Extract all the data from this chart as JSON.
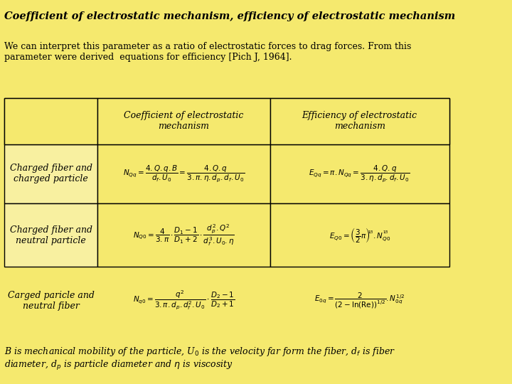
{
  "title": "Coefficient of electrostatic mechanism, efficiency of electrostatic mechanism",
  "subtitle": "We can interpret this parameter as a ratio of electrostatic forces to drag forces. From this\nparameter were derived  equations for efficiency [Pich J, 1964].",
  "col_headers": [
    "Coefficient of electrostatic\nmechanism",
    "Efficiency of electrostatic\nmechanism"
  ],
  "row_headers": [
    "Charged fiber and\ncharged particle",
    "Charged fiber and\nneutral particle",
    "Carged paricle and\nneutral fiber"
  ],
  "formula_coeff_1": "$N_{Qq} = \\dfrac{4.Q.q.B}{d_f.U_0} = \\dfrac{4.Q.q}{3.\\pi.\\eta.d_p.d_f.U_0}$",
  "formula_eff_1": "$E_{Qq} = \\pi.N_{Qq} = \\dfrac{4.Q.q}{3.\\eta.d_p.d_f.U_0}$",
  "formula_coeff_2": "$N_{Q0} = \\dfrac{4}{3.\\pi} \\cdot \\dfrac{D_1-1}{D_1+2} \\cdot \\dfrac{d_p^2.Q^2}{d_f^3.U_0.\\eta}$",
  "formula_eff_2": "$E_{Q0} = \\left(\\dfrac{3}{2}\\pi\\right)^{1/3}.N_{Q0}^{1/3}$",
  "formula_coeff_3": "$N_{q0} = \\dfrac{q^2}{3.\\pi.d_p.d_f^2.U_0} \\cdot \\dfrac{D_2-1}{D_2+1}$",
  "formula_eff_3": "$E_{0q} = \\dfrac{2}{\\left(2-\\ln(\\text{Re})\\right)^{1/2}} .N_{0q}^{1/2}$",
  "footer": "B is mechanical mobility of the particle, U$_0$ is the velocity far form the fiber, d$_f$ is fiber\ndiameter, d$_p$ is particle diameter and $\\eta$ is viscosity",
  "bg_color": "#f5e96e",
  "table_bg": "#f5e96e",
  "title_color": "#000000",
  "text_color": "#000000",
  "border_color": "#000000"
}
